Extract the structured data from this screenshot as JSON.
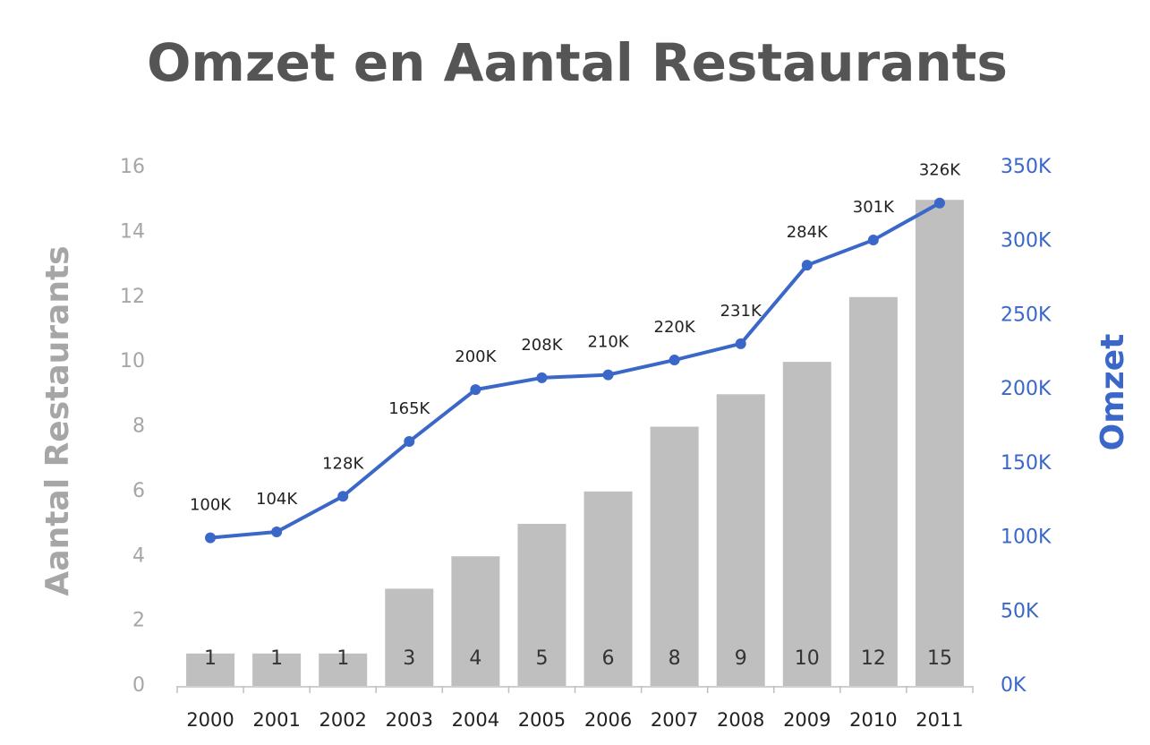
{
  "chart_data": {
    "type": "combo",
    "title": "Omzet en Aantal Restaurants",
    "ylabel": "Aantal Restaurants",
    "y2label": "Omzet",
    "categories": [
      "2000",
      "2001",
      "2002",
      "2003",
      "2004",
      "2005",
      "2006",
      "2007",
      "2008",
      "2009",
      "2010",
      "2011"
    ],
    "series": [
      {
        "type": "bar",
        "color": "#bfbfbf",
        "values": [
          1,
          1,
          1,
          3,
          4,
          5,
          6,
          8,
          9,
          10,
          12,
          15
        ]
      },
      {
        "type": "line",
        "axis": "y2",
        "color": "#3a67c8",
        "values": [
          100000,
          104000,
          128000,
          165000,
          200000,
          208000,
          210000,
          220000,
          231000,
          284000,
          301000,
          326000
        ],
        "value_labels": [
          "100K",
          "104K",
          "128K",
          "165K",
          "200K",
          "208K",
          "210K",
          "220K",
          "231K",
          "284K",
          "301K",
          "326K"
        ]
      }
    ],
    "ylim": [
      0,
      16
    ],
    "yticks": [
      0,
      2,
      4,
      6,
      8,
      10,
      12,
      14,
      16
    ],
    "y2lim": [
      0,
      350000
    ],
    "y2ticks": [
      {
        "value": 0,
        "label": "0K"
      },
      {
        "value": 50000,
        "label": "50K"
      },
      {
        "value": 100000,
        "label": "100K"
      },
      {
        "value": 150000,
        "label": "150K"
      },
      {
        "value": 200000,
        "label": "200K"
      },
      {
        "value": 250000,
        "label": "250K"
      },
      {
        "value": 300000,
        "label": "300K"
      },
      {
        "value": 350000,
        "label": "350K"
      }
    ],
    "ycolor": "#a6a6a6",
    "y2color": "#3a67c8"
  }
}
